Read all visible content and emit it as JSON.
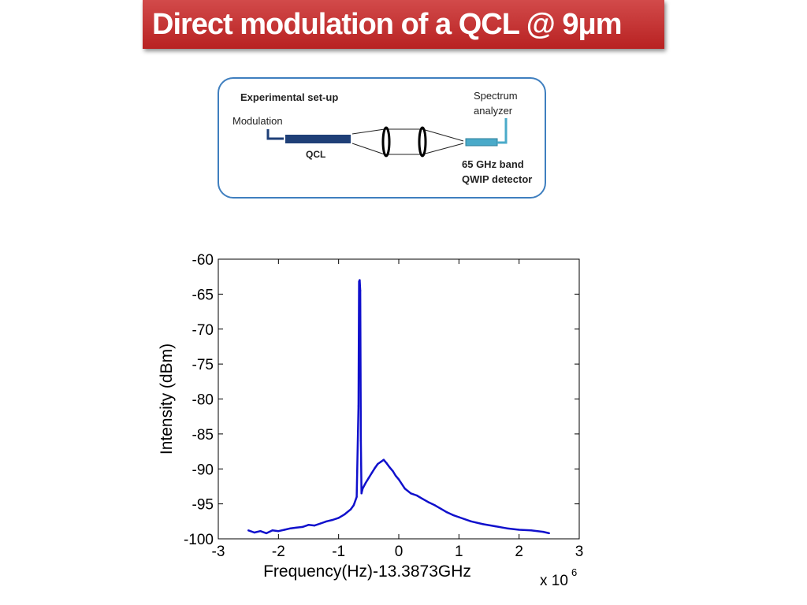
{
  "slide": {
    "title": "Direct modulation of a QCL @ 9μm"
  },
  "setup": {
    "heading": "Experimental set-up",
    "modulation": "Modulation",
    "qcl": "QCL",
    "spectrum_line1": "Spectrum",
    "spectrum_line2": "analyzer",
    "detector_line1": "65 GHz band",
    "detector_line2": "QWIP detector",
    "colors": {
      "qcl": "#1f3f77",
      "detector": "#4aaac9",
      "border": "#3f7fbf"
    }
  },
  "chart_data": {
    "type": "line",
    "xlabel": "Frequency(Hz)-13.3873GHz",
    "ylabel": "Intensity (dBm)",
    "x_multiplier_label": "x 10",
    "x_multiplier_exp": "6",
    "xlim": [
      -3,
      3
    ],
    "ylim": [
      -100,
      -60
    ],
    "xticks": [
      -3,
      -2,
      -1,
      0,
      1,
      2,
      3
    ],
    "yticks": [
      -60,
      -65,
      -70,
      -75,
      -80,
      -85,
      -90,
      -95,
      -100
    ],
    "xtick_labels": [
      "-3",
      "-2",
      "-1",
      "0",
      "1",
      "2",
      "3"
    ],
    "ytick_labels": [
      "-60",
      "-65",
      "-70",
      "-75",
      "-80",
      "-85",
      "-90",
      "-95",
      "-100"
    ],
    "line_color": "#1010cc",
    "series": [
      {
        "x": [
          -2.5,
          -2.4,
          -2.3,
          -2.2,
          -2.1,
          -2.0,
          -1.9,
          -1.8,
          -1.7,
          -1.6,
          -1.5,
          -1.4,
          -1.3,
          -1.2,
          -1.1,
          -1.0,
          -0.9,
          -0.8,
          -0.75,
          -0.7,
          -0.67,
          -0.66,
          -0.65,
          -0.64,
          -0.63,
          -0.62,
          -0.6,
          -0.55,
          -0.5,
          -0.45,
          -0.4,
          -0.35,
          -0.3,
          -0.25,
          -0.2,
          -0.15,
          -0.1,
          -0.05,
          0.0,
          0.1,
          0.2,
          0.3,
          0.4,
          0.5,
          0.6,
          0.7,
          0.8,
          0.9,
          1.0,
          1.2,
          1.4,
          1.6,
          1.8,
          2.0,
          2.2,
          2.4,
          2.5
        ],
        "y": [
          -98.8,
          -99.1,
          -98.9,
          -99.2,
          -98.8,
          -98.9,
          -98.7,
          -98.5,
          -98.4,
          -98.3,
          -98.0,
          -98.1,
          -97.8,
          -97.5,
          -97.3,
          -97.0,
          -96.5,
          -95.8,
          -95.2,
          -94.0,
          -81.0,
          -63.2,
          -63.0,
          -64.5,
          -86.0,
          -93.5,
          -92.8,
          -92.0,
          -91.3,
          -90.6,
          -89.9,
          -89.3,
          -89.0,
          -88.7,
          -89.2,
          -89.8,
          -90.3,
          -91.0,
          -91.5,
          -92.8,
          -93.5,
          -93.8,
          -94.3,
          -94.8,
          -95.2,
          -95.7,
          -96.2,
          -96.6,
          -96.9,
          -97.5,
          -97.9,
          -98.2,
          -98.5,
          -98.7,
          -98.8,
          -99.0,
          -99.2
        ]
      }
    ]
  }
}
